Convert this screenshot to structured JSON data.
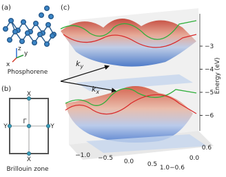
{
  "panel_a": {
    "label": "(a)",
    "caption": "Phosphorene",
    "axes": [
      "z",
      "y",
      "x"
    ]
  },
  "panel_b": {
    "label": "(b)",
    "caption": "Brillouin zone",
    "points": {
      "top": "X",
      "bottom": "X",
      "left": "Y",
      "right": "Y",
      "center": "Γ"
    }
  },
  "panel_c": {
    "label": "(c)",
    "ky": {
      "base": "k",
      "sub": "y"
    },
    "kx": {
      "base": "k",
      "sub": "x"
    },
    "z_label": "Energy (eV)",
    "z_ticks": [
      "−3",
      "−4",
      "−5",
      "−6"
    ],
    "x_ticks": [
      "−1.0",
      "−0.5",
      "0.0",
      "0.5",
      "1.0"
    ],
    "y_ticks": [
      "0.6",
      "0.0",
      "−0.6"
    ]
  }
}
